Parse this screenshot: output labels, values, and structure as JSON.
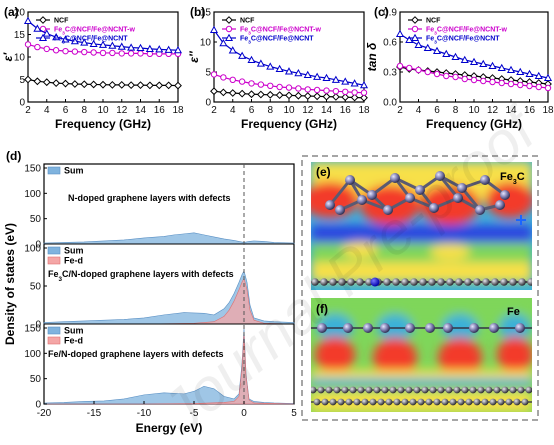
{
  "watermark": "Journal Pre-proof",
  "chart_data": [
    {
      "type": "line",
      "panel": "(a)",
      "ylabel": "ε′",
      "xlabel": "Frequency (GHz)",
      "xlim": [
        2,
        18
      ],
      "ylim": [
        0,
        20
      ],
      "xticks": [
        2,
        4,
        6,
        8,
        10,
        12,
        14,
        16,
        18
      ],
      "yticks": [
        0,
        5,
        10,
        15,
        20
      ],
      "legend": "top-right",
      "x": [
        2,
        3,
        4,
        5,
        6,
        7,
        8,
        9,
        10,
        11,
        12,
        13,
        14,
        15,
        16,
        17,
        18
      ],
      "series": [
        {
          "name": "NCF",
          "color": "#000000",
          "marker": "diamond",
          "values": [
            5.0,
            4.6,
            4.4,
            4.2,
            4.1,
            4.0,
            3.95,
            3.9,
            3.85,
            3.8,
            3.8,
            3.75,
            3.75,
            3.7,
            3.7,
            3.7,
            3.65
          ]
        },
        {
          "name": "Fe3C@NCF/Fe@NCNT-w",
          "color": "#cc00cc",
          "marker": "circle",
          "values": [
            12.8,
            12.2,
            11.8,
            11.5,
            11.3,
            11.2,
            11.1,
            11.0,
            10.9,
            10.9,
            10.8,
            10.8,
            10.8,
            10.7,
            10.7,
            10.7,
            10.7
          ]
        },
        {
          "name": "Fe3C@NCF/Fe@NCNT",
          "color": "#0000cc",
          "marker": "triangle",
          "values": [
            18.0,
            16.3,
            15.2,
            14.4,
            13.9,
            13.5,
            13.2,
            12.9,
            12.7,
            12.5,
            12.3,
            12.1,
            12.0,
            11.8,
            11.7,
            11.6,
            11.5
          ]
        }
      ]
    },
    {
      "type": "line",
      "panel": "(b)",
      "ylabel": "ε″",
      "xlabel": "Frequency (GHz)",
      "xlim": [
        2,
        18
      ],
      "ylim": [
        0,
        15
      ],
      "xticks": [
        2,
        4,
        6,
        8,
        10,
        12,
        14,
        16,
        18
      ],
      "yticks": [
        0,
        5,
        10,
        15
      ],
      "legend": "top-right",
      "x": [
        2,
        3,
        4,
        5,
        6,
        7,
        8,
        9,
        10,
        11,
        12,
        13,
        14,
        15,
        16,
        17,
        18
      ],
      "series": [
        {
          "name": "NCF",
          "color": "#000000",
          "marker": "diamond",
          "values": [
            1.8,
            1.6,
            1.5,
            1.4,
            1.3,
            1.25,
            1.2,
            1.15,
            1.1,
            1.05,
            1.0,
            0.95,
            0.9,
            0.85,
            0.8,
            0.75,
            0.7
          ]
        },
        {
          "name": "Fe3C@NCF/Fe@NCNT-w",
          "color": "#cc00cc",
          "marker": "circle",
          "values": [
            4.6,
            4.1,
            3.7,
            3.4,
            3.1,
            2.9,
            2.7,
            2.5,
            2.4,
            2.25,
            2.1,
            2.0,
            1.9,
            1.8,
            1.7,
            1.6,
            1.55
          ]
        },
        {
          "name": "Fe3C@NCF/Fe@NCNT",
          "color": "#0000cc",
          "marker": "triangle",
          "values": [
            12.0,
            9.8,
            8.6,
            7.7,
            7.0,
            6.4,
            5.9,
            5.5,
            5.1,
            4.8,
            4.5,
            4.2,
            4.0,
            3.7,
            3.4,
            3.1,
            2.8
          ]
        }
      ]
    },
    {
      "type": "line",
      "panel": "(c)",
      "ylabel": "tan δ",
      "xlabel": "Frequency (GHz)",
      "xlim": [
        2,
        18
      ],
      "ylim": [
        0,
        0.9
      ],
      "xticks": [
        2,
        4,
        6,
        8,
        10,
        12,
        14,
        16,
        18
      ],
      "yticks": [
        0.0,
        0.3,
        0.6,
        0.9
      ],
      "yticklabels": [
        "0.0",
        "0.3",
        "0.6",
        "0.9"
      ],
      "legend": "top-right",
      "x": [
        2,
        3,
        4,
        5,
        6,
        7,
        8,
        9,
        10,
        11,
        12,
        13,
        14,
        15,
        16,
        17,
        18
      ],
      "series": [
        {
          "name": "NCF",
          "color": "#000000",
          "marker": "diamond",
          "values": [
            0.35,
            0.33,
            0.32,
            0.31,
            0.3,
            0.29,
            0.28,
            0.27,
            0.26,
            0.25,
            0.24,
            0.23,
            0.22,
            0.21,
            0.2,
            0.19,
            0.18
          ]
        },
        {
          "name": "Fe3C@NCF/Fe@NCNT-w",
          "color": "#cc00cc",
          "marker": "circle",
          "values": [
            0.36,
            0.34,
            0.32,
            0.3,
            0.28,
            0.26,
            0.25,
            0.23,
            0.22,
            0.21,
            0.2,
            0.19,
            0.18,
            0.17,
            0.16,
            0.15,
            0.14
          ]
        },
        {
          "name": "Fe3C@NCF/Fe@NCNT",
          "color": "#0000cc",
          "marker": "triangle",
          "values": [
            0.68,
            0.62,
            0.57,
            0.54,
            0.51,
            0.48,
            0.45,
            0.42,
            0.4,
            0.38,
            0.36,
            0.34,
            0.32,
            0.3,
            0.28,
            0.26,
            0.24
          ]
        }
      ]
    },
    {
      "type": "area",
      "panel": "(d)",
      "ylabel": "Density of states (eV)",
      "xlabel": "Energy (eV)",
      "xlim": [
        -20,
        5
      ],
      "xticks": [
        -20,
        -15,
        -10,
        -5,
        0,
        5
      ],
      "fermi_level": 0,
      "subpanels": [
        {
          "label": "N-doped graphene layers with defects",
          "ylim": [
            0,
            150
          ],
          "yticks": [
            0,
            50,
            100,
            150
          ],
          "series": [
            {
              "name": "Sum",
              "color": "#7fb3de",
              "x": [
                -20,
                -18,
                -16,
                -14,
                -12,
                -10,
                -8,
                -7,
                -6,
                -5,
                -4,
                -3,
                -2,
                -1,
                -0.5,
                0,
                0.5,
                1,
                2,
                3,
                5
              ],
              "values": [
                2,
                3,
                4,
                6,
                8,
                12,
                15,
                18,
                20,
                22,
                18,
                14,
                10,
                7,
                5,
                3,
                5,
                6,
                5,
                3,
                2
              ]
            }
          ]
        },
        {
          "label": "Fe3C/N-doped graphene layers with defects",
          "ylim": [
            0,
            100
          ],
          "yticks": [
            0,
            50,
            100
          ],
          "series": [
            {
              "name": "Sum",
              "color": "#7fb3de",
              "x": [
                -20,
                -18,
                -16,
                -14,
                -12,
                -10,
                -8,
                -6,
                -4,
                -3,
                -2,
                -1.5,
                -1,
                -0.5,
                -0.2,
                0,
                0.3,
                0.6,
                1,
                2,
                3,
                5
              ],
              "values": [
                2,
                3,
                4,
                5,
                6,
                8,
                12,
                15,
                14,
                12,
                20,
                28,
                40,
                55,
                65,
                70,
                55,
                25,
                8,
                4,
                3,
                2
              ]
            },
            {
              "name": "Fe-d",
              "color": "#f4a6a6",
              "x": [
                -20,
                -10,
                -5,
                -3,
                -2,
                -1.5,
                -1,
                -0.5,
                -0.2,
                0,
                0.3,
                0.6,
                1,
                2,
                5
              ],
              "values": [
                0,
                0,
                1,
                3,
                10,
                18,
                30,
                45,
                55,
                60,
                45,
                18,
                5,
                1,
                0
              ]
            }
          ]
        },
        {
          "label": "Fe/N-doped graphene layers with defects",
          "ylim": [
            0,
            150
          ],
          "yticks": [
            0,
            50,
            100,
            150
          ],
          "series": [
            {
              "name": "Sum",
              "color": "#7fb3de",
              "x": [
                -20,
                -18,
                -16,
                -14,
                -12,
                -10,
                -8,
                -6,
                -5,
                -4,
                -3,
                -2,
                -1,
                -0.5,
                -0.2,
                0,
                0.2,
                0.5,
                1,
                2,
                3,
                5
              ],
              "values": [
                2,
                3,
                5,
                6,
                10,
                18,
                22,
                20,
                25,
                35,
                30,
                15,
                10,
                20,
                80,
                150,
                60,
                10,
                5,
                3,
                2,
                1
              ]
            },
            {
              "name": "Fe-d",
              "color": "#f4a6a6",
              "x": [
                -20,
                -10,
                -5,
                -2,
                -1,
                -0.5,
                -0.2,
                0,
                0.2,
                0.5,
                1,
                5
              ],
              "values": [
                0,
                0,
                1,
                3,
                5,
                15,
                70,
                140,
                55,
                8,
                2,
                0
              ]
            }
          ]
        }
      ]
    }
  ],
  "images": {
    "e": {
      "panel": "(e)",
      "label": "Fe3C"
    },
    "f": {
      "panel": "(f)",
      "label": "Fe"
    }
  }
}
